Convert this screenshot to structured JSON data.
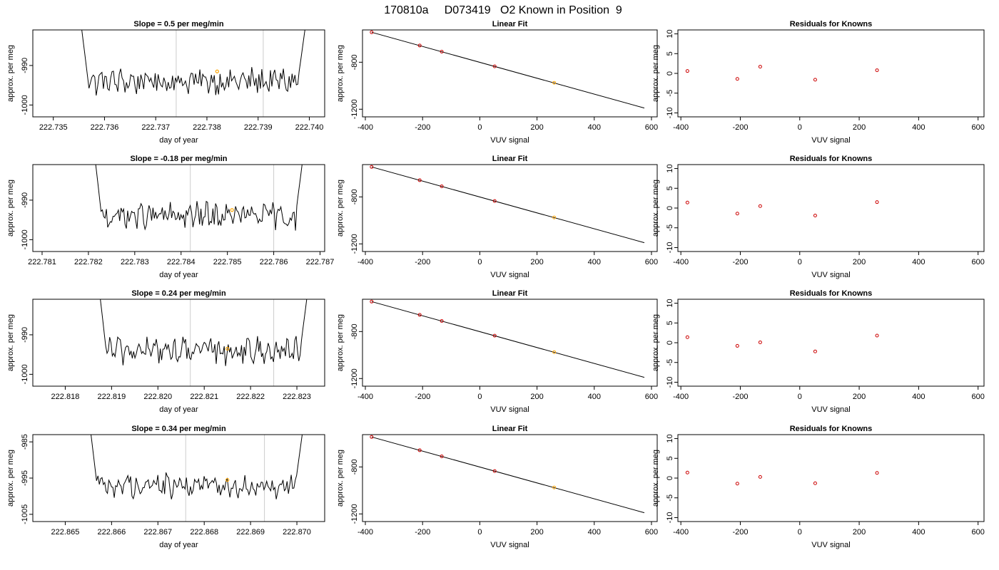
{
  "title": "170810a     D073419   O2 Known in Position  9",
  "colors": {
    "trace": "#000000",
    "vline": "#cccccc",
    "marker": "#ffa500",
    "residual": "#cc0000"
  },
  "chart_data": [
    {
      "type": "line",
      "row": 0,
      "title": "Slope =  0.5  per meg/min",
      "xlabel": "day of year",
      "ylabel": "approx. per meg",
      "xlim": [
        222.7346,
        222.7403
      ],
      "ylim": [
        -1003,
        -981
      ],
      "xticks": [
        {
          "v": 222.735,
          "label": "222.735"
        },
        {
          "v": 222.736,
          "label": "222.736"
        },
        {
          "v": 222.737,
          "label": "222.737"
        },
        {
          "v": 222.738,
          "label": "222.738"
        },
        {
          "v": 222.739,
          "label": "222.739"
        },
        {
          "v": 222.74,
          "label": "222.740"
        }
      ],
      "yticks": [
        {
          "v": -990,
          "label": "-990"
        },
        {
          "v": -1000,
          "label": "-1000"
        }
      ],
      "x_start": 222.7355,
      "x_end": 222.74,
      "vlines": [
        222.7374,
        222.7391
      ],
      "marker": {
        "x": 222.7382,
        "y": -991.5
      }
    },
    {
      "type": "scatter",
      "row": 0,
      "title": "Linear Fit",
      "xlabel": "VUV signal",
      "ylabel": "approx. per meg",
      "xlim": [
        -410,
        620
      ],
      "ylim": [
        -1265,
        -525
      ],
      "xticks": [
        {
          "v": -400,
          "label": "-400"
        },
        {
          "v": -200,
          "label": "-200"
        },
        {
          "v": 0,
          "label": "0"
        },
        {
          "v": 200,
          "label": "200"
        },
        {
          "v": 400,
          "label": "400"
        },
        {
          "v": 600,
          "label": "600"
        }
      ],
      "yticks": [
        {
          "v": -800,
          "label": "-800"
        },
        {
          "v": -1200,
          "label": "-1200"
        }
      ],
      "points": [
        {
          "x": -378,
          "y": -545
        },
        {
          "x": -210,
          "y": -658
        },
        {
          "x": -133,
          "y": -710
        },
        {
          "x": 52,
          "y": -835
        },
        {
          "x": 260,
          "y": -975
        }
      ],
      "highlight_index": 4,
      "fit_line": {
        "x1": -378,
        "y1": -545,
        "x2": 575,
        "y2": -1190
      }
    },
    {
      "type": "scatter",
      "row": 0,
      "title": "Residuals for Knowns",
      "xlabel": "VUV signal",
      "ylabel": "approx. per meg",
      "xlim": [
        -410,
        620
      ],
      "ylim": [
        -11,
        11
      ],
      "xticks": [
        {
          "v": -400,
          "label": "-400"
        },
        {
          "v": -200,
          "label": "-200"
        },
        {
          "v": 0,
          "label": "0"
        },
        {
          "v": 200,
          "label": "200"
        },
        {
          "v": 400,
          "label": "400"
        },
        {
          "v": 600,
          "label": "600"
        }
      ],
      "yticks": [
        {
          "v": 10,
          "label": "10"
        },
        {
          "v": 5,
          "label": "5"
        },
        {
          "v": 0,
          "label": "0"
        },
        {
          "v": -5,
          "label": "-5"
        },
        {
          "v": -10,
          "label": "-10"
        }
      ],
      "points": [
        {
          "x": -378,
          "y": 0.6
        },
        {
          "x": -210,
          "y": -1.4
        },
        {
          "x": -133,
          "y": 1.7
        },
        {
          "x": 52,
          "y": -1.6
        },
        {
          "x": 260,
          "y": 0.8
        }
      ]
    },
    {
      "type": "line",
      "row": 1,
      "title": "Slope =  -0.18  per meg/min",
      "xlabel": "day of year",
      "ylabel": "approx. per meg",
      "xlim": [
        222.7808,
        222.7871
      ],
      "ylim": [
        -1003,
        -981
      ],
      "xticks": [
        {
          "v": 222.781,
          "label": "222.781"
        },
        {
          "v": 222.782,
          "label": "222.782"
        },
        {
          "v": 222.783,
          "label": "222.783"
        },
        {
          "v": 222.784,
          "label": "222.784"
        },
        {
          "v": 222.785,
          "label": "222.785"
        },
        {
          "v": 222.786,
          "label": "222.786"
        },
        {
          "v": 222.787,
          "label": "222.787"
        }
      ],
      "yticks": [
        {
          "v": -990,
          "label": "-990"
        },
        {
          "v": -1000,
          "label": "-1000"
        }
      ],
      "x_start": 222.7821,
      "x_end": 222.7867,
      "vlines": [
        222.7842,
        222.786
      ],
      "marker": {
        "x": 222.7851,
        "y": -992.5
      }
    },
    {
      "type": "scatter",
      "row": 1,
      "title": "Linear Fit",
      "xlabel": "VUV signal",
      "ylabel": "approx. per meg",
      "xlim": [
        -410,
        620
      ],
      "ylim": [
        -1265,
        -525
      ],
      "xticks": [
        {
          "v": -400,
          "label": "-400"
        },
        {
          "v": -200,
          "label": "-200"
        },
        {
          "v": 0,
          "label": "0"
        },
        {
          "v": 200,
          "label": "200"
        },
        {
          "v": 400,
          "label": "400"
        },
        {
          "v": 600,
          "label": "600"
        }
      ],
      "yticks": [
        {
          "v": -800,
          "label": "-800"
        },
        {
          "v": -1200,
          "label": "-1200"
        }
      ],
      "points": [
        {
          "x": -378,
          "y": -545
        },
        {
          "x": -210,
          "y": -658
        },
        {
          "x": -133,
          "y": -710
        },
        {
          "x": 52,
          "y": -835
        },
        {
          "x": 260,
          "y": -975
        }
      ],
      "highlight_index": 4,
      "fit_line": {
        "x1": -378,
        "y1": -545,
        "x2": 575,
        "y2": -1190
      }
    },
    {
      "type": "scatter",
      "row": 1,
      "title": "Residuals for Knowns",
      "xlabel": "VUV signal",
      "ylabel": "approx. per meg",
      "xlim": [
        -410,
        620
      ],
      "ylim": [
        -11,
        11
      ],
      "xticks": [
        {
          "v": -400,
          "label": "-400"
        },
        {
          "v": -200,
          "label": "-200"
        },
        {
          "v": 0,
          "label": "0"
        },
        {
          "v": 200,
          "label": "200"
        },
        {
          "v": 400,
          "label": "400"
        },
        {
          "v": 600,
          "label": "600"
        }
      ],
      "yticks": [
        {
          "v": 10,
          "label": "10"
        },
        {
          "v": 5,
          "label": "5"
        },
        {
          "v": 0,
          "label": "0"
        },
        {
          "v": -5,
          "label": "-5"
        },
        {
          "v": -10,
          "label": "-10"
        }
      ],
      "points": [
        {
          "x": -378,
          "y": 1.4
        },
        {
          "x": -210,
          "y": -1.4
        },
        {
          "x": -133,
          "y": 0.5
        },
        {
          "x": 52,
          "y": -1.9
        },
        {
          "x": 260,
          "y": 1.5
        }
      ]
    },
    {
      "type": "line",
      "row": 2,
      "title": "Slope =  0.24  per meg/min",
      "xlabel": "day of year",
      "ylabel": "approx. per meg",
      "xlim": [
        222.8173,
        222.8236
      ],
      "ylim": [
        -1003,
        -981
      ],
      "xticks": [
        {
          "v": 222.818,
          "label": "222.818"
        },
        {
          "v": 222.819,
          "label": "222.819"
        },
        {
          "v": 222.82,
          "label": "222.820"
        },
        {
          "v": 222.821,
          "label": "222.821"
        },
        {
          "v": 222.822,
          "label": "222.822"
        },
        {
          "v": 222.823,
          "label": "222.823"
        }
      ],
      "yticks": [
        {
          "v": -990,
          "label": "-990"
        },
        {
          "v": -1000,
          "label": "-1000"
        }
      ],
      "x_start": 222.8187,
      "x_end": 222.8233,
      "vlines": [
        222.8207,
        222.8225
      ],
      "marker": {
        "x": 222.8215,
        "y": -993.5
      }
    },
    {
      "type": "scatter",
      "row": 2,
      "title": "Linear Fit",
      "xlabel": "VUV signal",
      "ylabel": "approx. per meg",
      "xlim": [
        -410,
        620
      ],
      "ylim": [
        -1265,
        -525
      ],
      "xticks": [
        {
          "v": -400,
          "label": "-400"
        },
        {
          "v": -200,
          "label": "-200"
        },
        {
          "v": 0,
          "label": "0"
        },
        {
          "v": 200,
          "label": "200"
        },
        {
          "v": 400,
          "label": "400"
        },
        {
          "v": 600,
          "label": "600"
        }
      ],
      "yticks": [
        {
          "v": -800,
          "label": "-800"
        },
        {
          "v": -1200,
          "label": "-1200"
        }
      ],
      "points": [
        {
          "x": -378,
          "y": -545
        },
        {
          "x": -210,
          "y": -658
        },
        {
          "x": -133,
          "y": -710
        },
        {
          "x": 52,
          "y": -835
        },
        {
          "x": 260,
          "y": -975
        }
      ],
      "highlight_index": 4,
      "fit_line": {
        "x1": -378,
        "y1": -545,
        "x2": 575,
        "y2": -1190
      }
    },
    {
      "type": "scatter",
      "row": 2,
      "title": "Residuals for Knowns",
      "xlabel": "VUV signal",
      "ylabel": "approx. per meg",
      "xlim": [
        -410,
        620
      ],
      "ylim": [
        -11,
        11
      ],
      "xticks": [
        {
          "v": -400,
          "label": "-400"
        },
        {
          "v": -200,
          "label": "-200"
        },
        {
          "v": 0,
          "label": "0"
        },
        {
          "v": 200,
          "label": "200"
        },
        {
          "v": 400,
          "label": "400"
        },
        {
          "v": 600,
          "label": "600"
        }
      ],
      "yticks": [
        {
          "v": 10,
          "label": "10"
        },
        {
          "v": 5,
          "label": "5"
        },
        {
          "v": 0,
          "label": "0"
        },
        {
          "v": -5,
          "label": "-5"
        },
        {
          "v": -10,
          "label": "-10"
        }
      ],
      "points": [
        {
          "x": -378,
          "y": 1.4
        },
        {
          "x": -210,
          "y": -0.8
        },
        {
          "x": -133,
          "y": 0.1
        },
        {
          "x": 52,
          "y": -2.2
        },
        {
          "x": 260,
          "y": 1.8
        }
      ]
    },
    {
      "type": "line",
      "row": 3,
      "title": "Slope =  0.34  per meg/min",
      "xlabel": "day of year",
      "ylabel": "approx. per meg",
      "xlim": [
        222.8643,
        222.8706
      ],
      "ylim": [
        -1007,
        -983
      ],
      "xticks": [
        {
          "v": 222.865,
          "label": "222.865"
        },
        {
          "v": 222.866,
          "label": "222.866"
        },
        {
          "v": 222.867,
          "label": "222.867"
        },
        {
          "v": 222.868,
          "label": "222.868"
        },
        {
          "v": 222.869,
          "label": "222.869"
        },
        {
          "v": 222.87,
          "label": "222.870"
        }
      ],
      "yticks": [
        {
          "v": -985,
          "label": "-985"
        },
        {
          "v": -995,
          "label": "-995"
        },
        {
          "v": -1005,
          "label": "-1005"
        }
      ],
      "x_start": 222.8655,
      "x_end": 222.8702,
      "vlines": [
        222.8676,
        222.8693
      ],
      "marker": {
        "x": 222.8685,
        "y": -995.5
      }
    },
    {
      "type": "scatter",
      "row": 3,
      "title": "Linear Fit",
      "xlabel": "VUV signal",
      "ylabel": "approx. per meg",
      "xlim": [
        -410,
        620
      ],
      "ylim": [
        -1265,
        -525
      ],
      "xticks": [
        {
          "v": -400,
          "label": "-400"
        },
        {
          "v": -200,
          "label": "-200"
        },
        {
          "v": 0,
          "label": "0"
        },
        {
          "v": 200,
          "label": "200"
        },
        {
          "v": 400,
          "label": "400"
        },
        {
          "v": 600,
          "label": "600"
        }
      ],
      "yticks": [
        {
          "v": -800,
          "label": "-800"
        },
        {
          "v": -1200,
          "label": "-1200"
        }
      ],
      "points": [
        {
          "x": -378,
          "y": -545
        },
        {
          "x": -210,
          "y": -658
        },
        {
          "x": -133,
          "y": -710
        },
        {
          "x": 52,
          "y": -835
        },
        {
          "x": 260,
          "y": -975
        }
      ],
      "highlight_index": 4,
      "fit_line": {
        "x1": -378,
        "y1": -545,
        "x2": 575,
        "y2": -1190
      }
    },
    {
      "type": "scatter",
      "row": 3,
      "title": "Residuals for Knowns",
      "xlabel": "VUV signal",
      "ylabel": "approx. per meg",
      "xlim": [
        -410,
        620
      ],
      "ylim": [
        -11,
        11
      ],
      "xticks": [
        {
          "v": -400,
          "label": "-400"
        },
        {
          "v": -200,
          "label": "-200"
        },
        {
          "v": 0,
          "label": "0"
        },
        {
          "v": 200,
          "label": "200"
        },
        {
          "v": 400,
          "label": "400"
        },
        {
          "v": 600,
          "label": "600"
        }
      ],
      "yticks": [
        {
          "v": 10,
          "label": "10"
        },
        {
          "v": 5,
          "label": "5"
        },
        {
          "v": 0,
          "label": "0"
        },
        {
          "v": -5,
          "label": "-5"
        },
        {
          "v": -10,
          "label": "-10"
        }
      ],
      "points": [
        {
          "x": -378,
          "y": 1.4
        },
        {
          "x": -210,
          "y": -1.4
        },
        {
          "x": -133,
          "y": 0.3
        },
        {
          "x": 52,
          "y": -1.3
        },
        {
          "x": 260,
          "y": 1.3
        }
      ]
    }
  ]
}
